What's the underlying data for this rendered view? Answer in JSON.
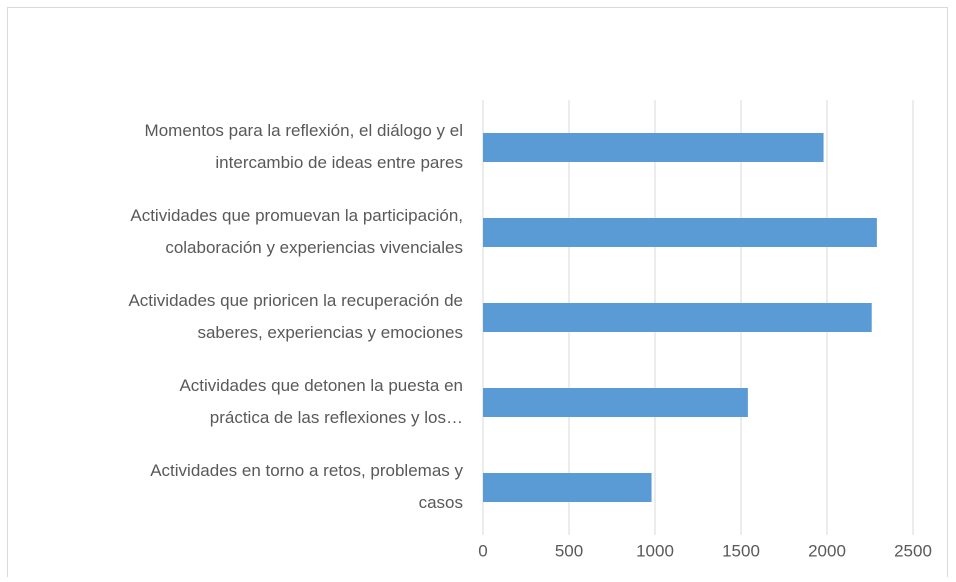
{
  "chart_data": {
    "type": "bar",
    "orientation": "horizontal",
    "categories": [
      [
        "Momentos para la reflexión, el diálogo y el",
        "intercambio de ideas entre pares"
      ],
      [
        "Actividades que promuevan la participación,",
        "colaboración y experiencias vivenciales"
      ],
      [
        "Actividades que prioricen la recuperación de",
        "saberes, experiencias y emociones"
      ],
      [
        "Actividades que detonen la puesta en",
        "práctica de las reflexiones y los…"
      ],
      [
        "Actividades en torno a retos, problemas y",
        "casos"
      ]
    ],
    "values": [
      1980,
      2290,
      2260,
      1540,
      980
    ],
    "color": "#5b9bd5",
    "xlim": [
      0,
      2500
    ],
    "xticks": [
      0,
      500,
      1000,
      1500,
      2000,
      2500
    ],
    "grid": true
  }
}
